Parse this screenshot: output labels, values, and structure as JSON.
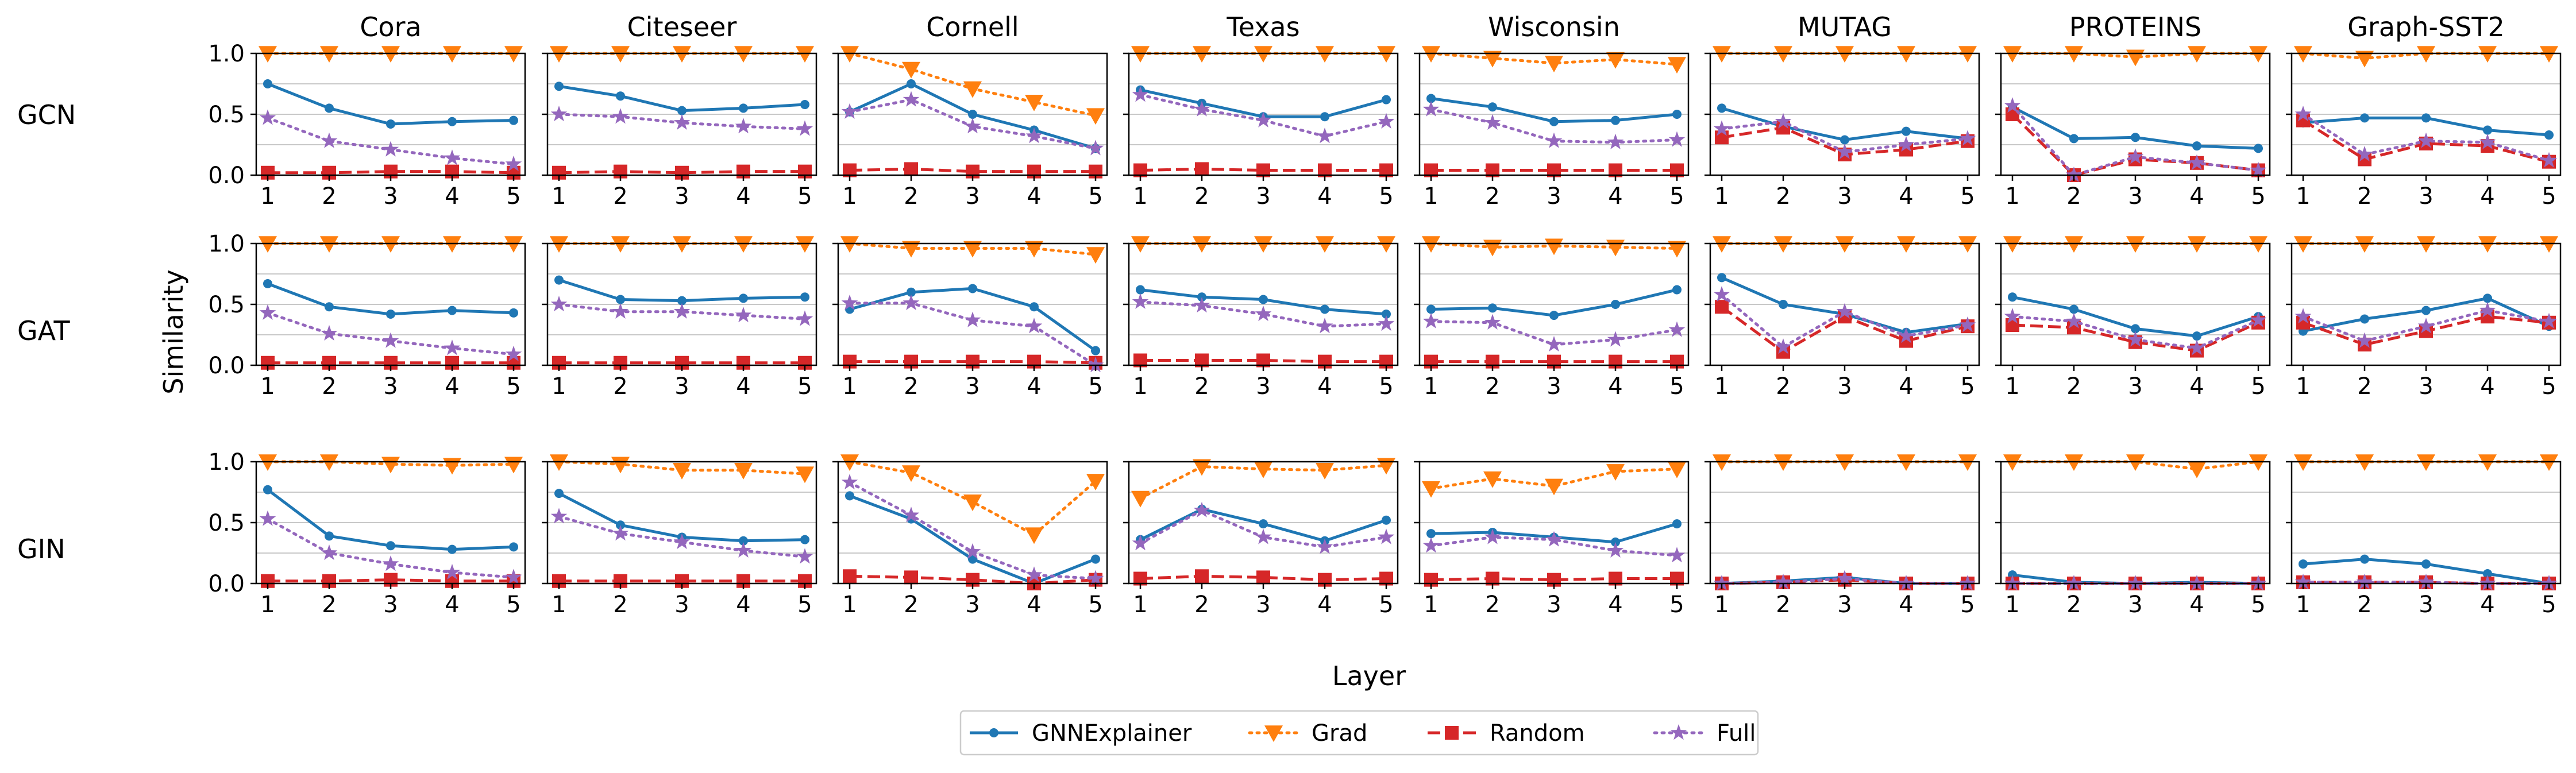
{
  "figure": {
    "ylabel": "Similarity",
    "xlabel": "Layer"
  },
  "columns": [
    "Cora",
    "Citeseer",
    "Cornell",
    "Texas",
    "Wisconsin",
    "MUTAG",
    "PROTEINS",
    "Graph-SST2"
  ],
  "rows": [
    "GCN",
    "GAT",
    "GIN"
  ],
  "legend": {
    "items": [
      {
        "name": "GNNExplainer",
        "color": "#1f77b4",
        "marker": "circle",
        "dash": "solid"
      },
      {
        "name": "Grad",
        "color": "#ff7f0e",
        "marker": "triangle-down",
        "dash": "dotted"
      },
      {
        "name": "Random",
        "color": "#d62728",
        "marker": "square",
        "dash": "dashed"
      },
      {
        "name": "Full",
        "color": "#9467bd",
        "marker": "star",
        "dash": "dotted"
      }
    ]
  },
  "chart_data": {
    "type": "line",
    "x": [
      1,
      2,
      3,
      4,
      5
    ],
    "xticks": [
      "1",
      "2",
      "3",
      "4",
      "5"
    ],
    "ylim": [
      0,
      1
    ],
    "yticks": [
      "0.0",
      "0.5",
      "1.0"
    ],
    "grid": true,
    "legend_position": "bottom-center",
    "panels": [
      [
        {
          "GNNExplainer": [
            0.75,
            0.55,
            0.42,
            0.44,
            0.45
          ],
          "Grad": [
            1.0,
            1.0,
            1.0,
            1.0,
            1.0
          ],
          "Random": [
            0.02,
            0.02,
            0.03,
            0.03,
            0.02
          ],
          "Full": [
            0.47,
            0.28,
            0.21,
            0.14,
            0.09
          ]
        },
        {
          "GNNExplainer": [
            0.73,
            0.65,
            0.53,
            0.55,
            0.58
          ],
          "Grad": [
            1.0,
            1.0,
            1.0,
            1.0,
            1.0
          ],
          "Random": [
            0.02,
            0.03,
            0.02,
            0.03,
            0.03
          ],
          "Full": [
            0.5,
            0.48,
            0.43,
            0.4,
            0.38
          ]
        },
        {
          "GNNExplainer": [
            0.52,
            0.75,
            0.5,
            0.37,
            0.22
          ],
          "Grad": [
            1.0,
            0.87,
            0.71,
            0.6,
            0.49
          ],
          "Random": [
            0.04,
            0.05,
            0.03,
            0.03,
            0.03
          ],
          "Full": [
            0.52,
            0.62,
            0.4,
            0.32,
            0.22
          ]
        },
        {
          "GNNExplainer": [
            0.7,
            0.59,
            0.48,
            0.48,
            0.62
          ],
          "Grad": [
            1.0,
            1.0,
            1.0,
            1.0,
            1.0
          ],
          "Random": [
            0.04,
            0.05,
            0.04,
            0.04,
            0.04
          ],
          "Full": [
            0.66,
            0.54,
            0.45,
            0.32,
            0.44
          ]
        },
        {
          "GNNExplainer": [
            0.63,
            0.56,
            0.44,
            0.45,
            0.5
          ],
          "Grad": [
            1.0,
            0.96,
            0.92,
            0.95,
            0.91
          ],
          "Random": [
            0.04,
            0.04,
            0.04,
            0.04,
            0.04
          ],
          "Full": [
            0.54,
            0.43,
            0.28,
            0.27,
            0.29
          ]
        },
        {
          "GNNExplainer": [
            0.55,
            0.4,
            0.29,
            0.36,
            0.3
          ],
          "Grad": [
            1.0,
            1.0,
            1.0,
            1.0,
            1.0
          ],
          "Random": [
            0.31,
            0.39,
            0.17,
            0.21,
            0.28
          ],
          "Full": [
            0.38,
            0.44,
            0.19,
            0.25,
            0.3
          ]
        },
        {
          "GNNExplainer": [
            0.56,
            0.3,
            0.31,
            0.24,
            0.22
          ],
          "Grad": [
            1.0,
            1.0,
            0.97,
            1.0,
            1.0
          ],
          "Random": [
            0.5,
            0.0,
            0.13,
            0.1,
            0.04
          ],
          "Full": [
            0.57,
            0.0,
            0.15,
            0.1,
            0.04
          ]
        },
        {
          "GNNExplainer": [
            0.43,
            0.47,
            0.47,
            0.37,
            0.33
          ],
          "Grad": [
            1.0,
            0.96,
            1.0,
            1.0,
            1.0
          ],
          "Random": [
            0.45,
            0.13,
            0.26,
            0.24,
            0.11
          ],
          "Full": [
            0.5,
            0.17,
            0.28,
            0.27,
            0.12
          ]
        }
      ],
      [
        {
          "GNNExplainer": [
            0.67,
            0.48,
            0.42,
            0.45,
            0.43
          ],
          "Grad": [
            1.0,
            1.0,
            1.0,
            1.0,
            1.0
          ],
          "Random": [
            0.02,
            0.02,
            0.02,
            0.02,
            0.02
          ],
          "Full": [
            0.43,
            0.26,
            0.2,
            0.14,
            0.09
          ]
        },
        {
          "GNNExplainer": [
            0.7,
            0.54,
            0.53,
            0.55,
            0.56
          ],
          "Grad": [
            1.0,
            1.0,
            1.0,
            1.0,
            1.0
          ],
          "Random": [
            0.02,
            0.02,
            0.02,
            0.02,
            0.02
          ],
          "Full": [
            0.5,
            0.44,
            0.44,
            0.41,
            0.38
          ]
        },
        {
          "GNNExplainer": [
            0.46,
            0.6,
            0.63,
            0.48,
            0.12
          ],
          "Grad": [
            1.0,
            0.96,
            0.96,
            0.96,
            0.91
          ],
          "Random": [
            0.03,
            0.03,
            0.03,
            0.03,
            0.02
          ],
          "Full": [
            0.51,
            0.51,
            0.37,
            0.32,
            0.0
          ]
        },
        {
          "GNNExplainer": [
            0.62,
            0.56,
            0.54,
            0.46,
            0.42
          ],
          "Grad": [
            1.0,
            1.0,
            1.0,
            1.0,
            1.0
          ],
          "Random": [
            0.04,
            0.04,
            0.04,
            0.03,
            0.03
          ],
          "Full": [
            0.52,
            0.49,
            0.42,
            0.32,
            0.34
          ]
        },
        {
          "GNNExplainer": [
            0.46,
            0.47,
            0.41,
            0.5,
            0.62
          ],
          "Grad": [
            1.0,
            0.97,
            0.98,
            0.97,
            0.96
          ],
          "Random": [
            0.03,
            0.03,
            0.03,
            0.03,
            0.03
          ],
          "Full": [
            0.36,
            0.35,
            0.17,
            0.21,
            0.29
          ]
        },
        {
          "GNNExplainer": [
            0.72,
            0.5,
            0.42,
            0.27,
            0.34
          ],
          "Grad": [
            1.0,
            1.0,
            1.0,
            1.0,
            1.0
          ],
          "Random": [
            0.48,
            0.11,
            0.4,
            0.2,
            0.32
          ],
          "Full": [
            0.58,
            0.15,
            0.44,
            0.24,
            0.33
          ]
        },
        {
          "GNNExplainer": [
            0.56,
            0.46,
            0.3,
            0.24,
            0.4
          ],
          "Grad": [
            1.0,
            1.0,
            1.0,
            1.0,
            1.0
          ],
          "Random": [
            0.33,
            0.31,
            0.19,
            0.12,
            0.35
          ],
          "Full": [
            0.4,
            0.36,
            0.21,
            0.14,
            0.37
          ]
        },
        {
          "GNNExplainer": [
            0.28,
            0.38,
            0.45,
            0.55,
            0.32
          ],
          "Grad": [
            1.0,
            1.0,
            1.0,
            1.0,
            1.0
          ],
          "Random": [
            0.35,
            0.17,
            0.28,
            0.4,
            0.35
          ],
          "Full": [
            0.4,
            0.2,
            0.32,
            0.45,
            0.36
          ]
        }
      ],
      [
        {
          "GNNExplainer": [
            0.77,
            0.39,
            0.31,
            0.28,
            0.3
          ],
          "Grad": [
            1.0,
            1.0,
            0.98,
            0.97,
            0.98
          ],
          "Random": [
            0.02,
            0.02,
            0.03,
            0.02,
            0.02
          ],
          "Full": [
            0.53,
            0.25,
            0.16,
            0.09,
            0.05
          ]
        },
        {
          "GNNExplainer": [
            0.74,
            0.48,
            0.38,
            0.35,
            0.36
          ],
          "Grad": [
            1.0,
            0.98,
            0.93,
            0.93,
            0.9
          ],
          "Random": [
            0.02,
            0.02,
            0.02,
            0.02,
            0.02
          ],
          "Full": [
            0.55,
            0.41,
            0.34,
            0.27,
            0.22
          ]
        },
        {
          "GNNExplainer": [
            0.72,
            0.53,
            0.2,
            0.0,
            0.2
          ],
          "Grad": [
            1.0,
            0.91,
            0.67,
            0.4,
            0.84
          ],
          "Random": [
            0.06,
            0.05,
            0.03,
            0.0,
            0.03
          ],
          "Full": [
            0.83,
            0.56,
            0.26,
            0.07,
            0.04
          ]
        },
        {
          "GNNExplainer": [
            0.36,
            0.61,
            0.49,
            0.35,
            0.52
          ],
          "Grad": [
            0.7,
            0.96,
            0.94,
            0.93,
            0.97
          ],
          "Random": [
            0.04,
            0.06,
            0.05,
            0.03,
            0.04
          ],
          "Full": [
            0.33,
            0.6,
            0.38,
            0.3,
            0.38
          ]
        },
        {
          "GNNExplainer": [
            0.41,
            0.42,
            0.38,
            0.34,
            0.49
          ],
          "Grad": [
            0.78,
            0.86,
            0.8,
            0.92,
            0.94
          ],
          "Random": [
            0.03,
            0.04,
            0.03,
            0.04,
            0.04
          ],
          "Full": [
            0.31,
            0.38,
            0.36,
            0.27,
            0.23
          ]
        },
        {
          "GNNExplainer": [
            0.0,
            0.02,
            0.05,
            0.0,
            0.0
          ],
          "Grad": [
            1.0,
            1.0,
            1.0,
            1.0,
            1.0
          ],
          "Random": [
            0.0,
            0.01,
            0.03,
            0.0,
            0.0
          ],
          "Full": [
            0.0,
            0.01,
            0.04,
            0.0,
            0.0
          ]
        },
        {
          "GNNExplainer": [
            0.07,
            0.01,
            0.0,
            0.01,
            0.0
          ],
          "Grad": [
            1.0,
            1.0,
            1.0,
            0.94,
            1.0
          ],
          "Random": [
            0.0,
            0.0,
            0.0,
            0.0,
            0.0
          ],
          "Full": [
            0.0,
            0.0,
            0.0,
            0.0,
            0.0
          ]
        },
        {
          "GNNExplainer": [
            0.16,
            0.2,
            0.16,
            0.08,
            0.0
          ],
          "Grad": [
            1.0,
            1.0,
            1.0,
            1.0,
            1.0
          ],
          "Random": [
            0.01,
            0.01,
            0.01,
            0.0,
            0.0
          ],
          "Full": [
            0.01,
            0.01,
            0.01,
            0.0,
            0.0
          ]
        }
      ]
    ]
  }
}
